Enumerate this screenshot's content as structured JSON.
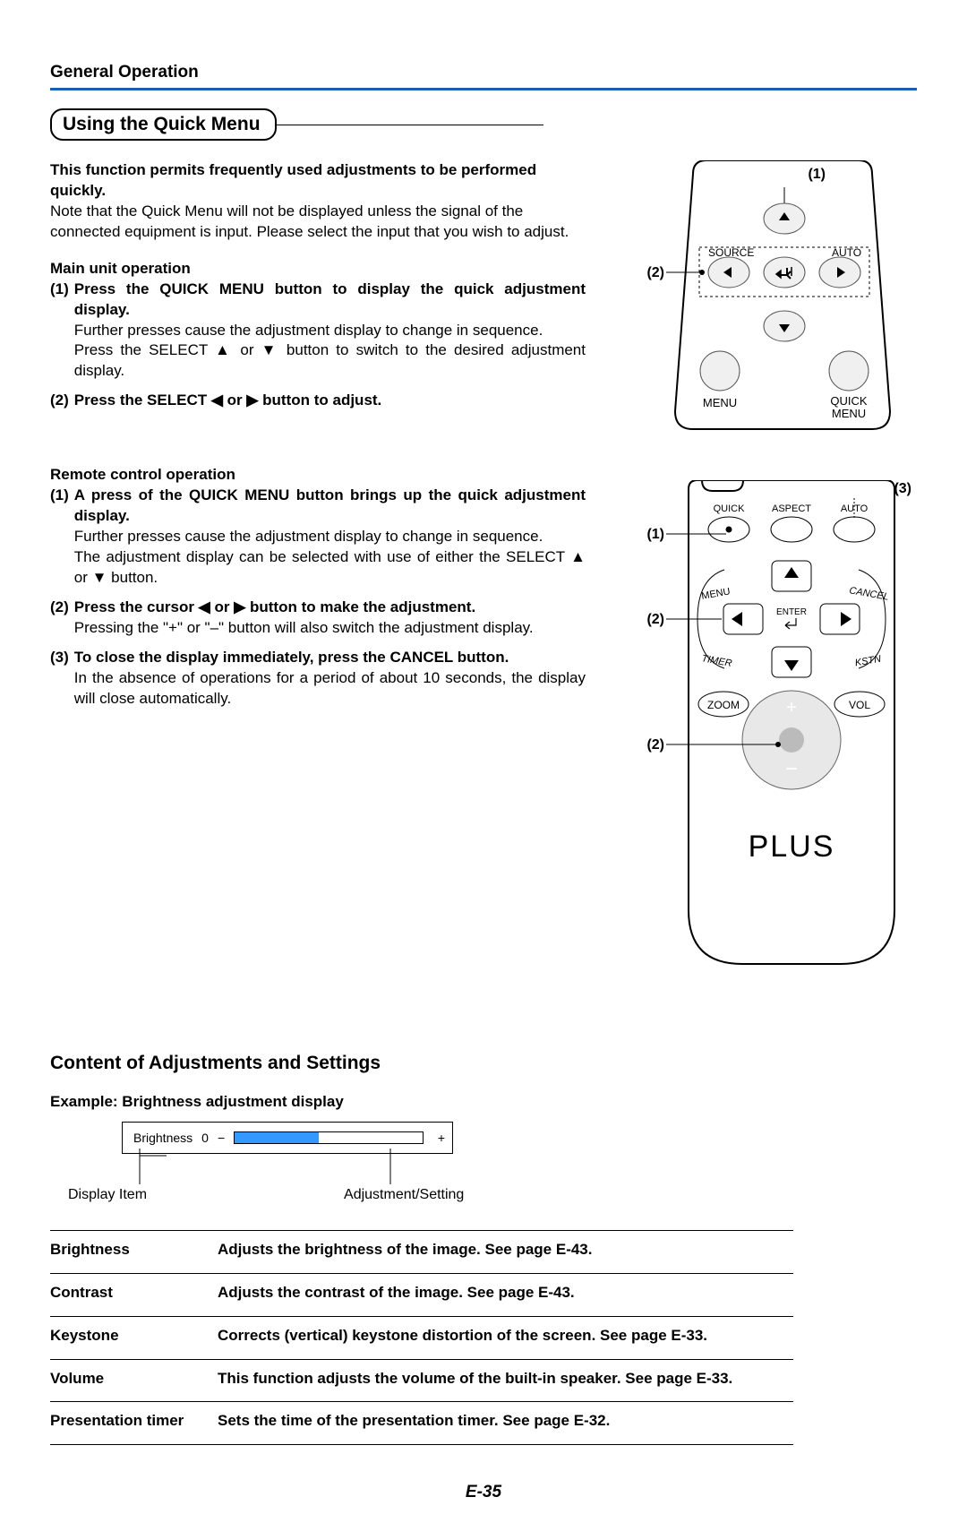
{
  "header": {
    "title": "General Operation"
  },
  "section": {
    "title": "Using the Quick Menu"
  },
  "intro": {
    "bold": "This function permits frequently used adjustments to be performed quickly.",
    "body": "Note that the Quick Menu will not be displayed unless the signal of the connected equipment is input. Please select the input that you wish to adjust."
  },
  "mainUnit": {
    "heading": "Main unit operation",
    "item1bold": "Press the QUICK MENU button to display the quick adjustment display.",
    "item1a": "Further presses cause the adjustment display to change in sequence.",
    "item1b": "Press the SELECT ▲ or ▼ button to switch to the desired adjustment display.",
    "item2bold": "Press the SELECT ◀ or ▶ button to adjust."
  },
  "remote": {
    "heading": "Remote control operation",
    "item1bold": "A press of the QUICK MENU button brings up the quick adjustment display.",
    "item1a": "Further presses cause the adjustment display to change in sequence.",
    "item1b": "The adjustment display can be selected with use of either the SELECT ▲ or ▼ button.",
    "item2bold": "Press the cursor ◀ or ▶ button to make the adjustment.",
    "item2a": "Pressing the \"+\" or \"–\" button will also switch the adjustment display.",
    "item3bold": "To close the display immediately, press the CANCEL button.",
    "item3a": "In the absence of operations for a period of about 10 seconds, the display will close automatically."
  },
  "diagramTop": {
    "callout1": "(1)",
    "callout2": "(2)",
    "labels": {
      "source": "SOURCE",
      "auto": "AUTO",
      "menu": "MENU",
      "quick": "QUICK",
      "quick2": "MENU"
    }
  },
  "diagramBottom": {
    "callout1": "(1)",
    "callout2": "(2)",
    "callout3": "(3)",
    "labels": {
      "quick": "QUICK",
      "aspect": "ASPECT",
      "auto": "AUTO",
      "menu": "MENU",
      "enter": "ENTER",
      "cancel": "CANCEL",
      "timer": "TIMER",
      "kstn": "KSTN",
      "zoom": "ZOOM",
      "vol": "VOL",
      "brand": "PLUS"
    }
  },
  "content": {
    "heading": "Content of Adjustments and Settings",
    "example": "Example: Brightness adjustment display",
    "osd": {
      "name": "Brightness",
      "value": "0",
      "minus": "−",
      "plus": "+",
      "fillPct": 45
    },
    "legend": {
      "left": "Display Item",
      "right": "Adjustment/Setting"
    }
  },
  "table": [
    {
      "name": "Brightness",
      "desc": "Adjusts the brightness of the image. See page E-43."
    },
    {
      "name": "Contrast",
      "desc": "Adjusts the contrast of the image. See page E-43."
    },
    {
      "name": "Keystone",
      "desc": "Corrects (vertical) keystone distortion of the screen.  See page E-33."
    },
    {
      "name": "Volume",
      "desc": "This function adjusts the volume of the built-in speaker. See page E-33."
    },
    {
      "name": "Presentation timer",
      "desc": "Sets the time of the presentation timer.  See page E-32."
    }
  ],
  "pageNum": "E-35",
  "colors": {
    "rule": "#1a5fb4",
    "barFill": "#3399ff"
  }
}
